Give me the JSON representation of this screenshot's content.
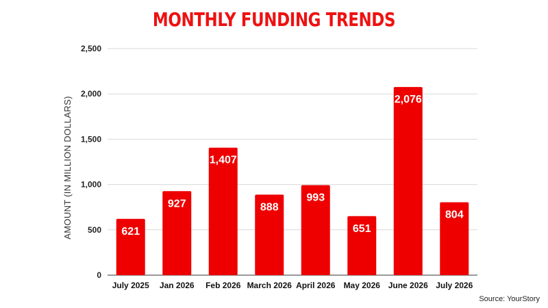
{
  "chart_data": {
    "type": "bar",
    "title": "MONTHLY FUNDING TRENDS",
    "xlabel": "",
    "ylabel": "AMOUNT (IN MILLION DOLLARS)",
    "categories": [
      "July 2025",
      "Jan 2026",
      "Feb 2026",
      "March 2026",
      "April 2026",
      "May 2026",
      "June 2026",
      "July 2026"
    ],
    "values": [
      621,
      927,
      1407,
      888,
      993,
      651,
      2076,
      804
    ],
    "value_labels": [
      "621",
      "927",
      "1,407",
      "888",
      "993",
      "651",
      "2,076",
      "804"
    ],
    "ylim": [
      0,
      2500
    ],
    "yticks": [
      0,
      500,
      1000,
      1500,
      2000,
      2500
    ],
    "ytick_labels": [
      "0",
      "500",
      "1,000",
      "1,500",
      "2,000",
      "2,500"
    ],
    "grid": true,
    "legend": "none",
    "bar_color": "#ee0000",
    "title_color": "#ee1111"
  },
  "source": "Source: YourStory"
}
